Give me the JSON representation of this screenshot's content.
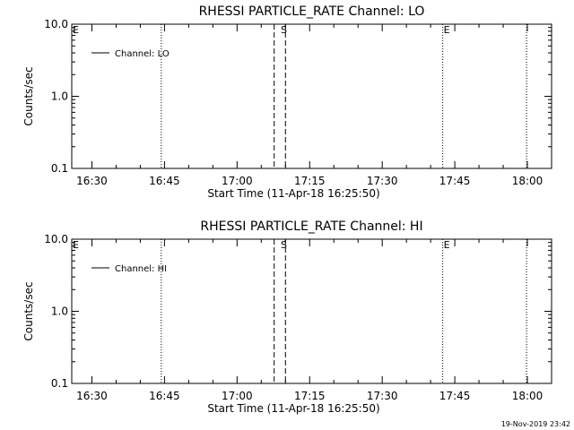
{
  "footer": {
    "timestamp": "19-Nov-2019 23:42"
  },
  "chart_data": [
    {
      "type": "line",
      "title": "RHESSI PARTICLE_RATE Channel: LO",
      "xlabel": "Start Time (11-Apr-18 16:25:50)",
      "ylabel": "Counts/sec",
      "yscale": "log",
      "ylim": [
        0.1,
        10.0
      ],
      "xlim": [
        "16:25:50",
        "18:05:00"
      ],
      "x_ticks": [
        "16:30",
        "16:45",
        "17:00",
        "17:15",
        "17:30",
        "17:45",
        "18:00"
      ],
      "y_ticks": [
        "0.1",
        "1.0",
        "10.0"
      ],
      "grid": false,
      "legend": "top-left",
      "series": [
        {
          "name": "Channel: LO",
          "x": [],
          "values": []
        }
      ],
      "markers": [
        {
          "label": "E",
          "time": "16:25:50",
          "style": "dotted"
        },
        {
          "label": "",
          "time": "16:44:20",
          "style": "dotted"
        },
        {
          "label": "",
          "time": "17:07:40",
          "style": "dashed"
        },
        {
          "label": "S",
          "time": "17:08:50",
          "style": "none"
        },
        {
          "label": "",
          "time": "17:10:00",
          "style": "dashed"
        },
        {
          "label": "E",
          "time": "17:42:30",
          "style": "dotted"
        },
        {
          "label": "",
          "time": "17:59:50",
          "style": "dotted"
        }
      ]
    },
    {
      "type": "line",
      "title": "RHESSI PARTICLE_RATE Channel: HI",
      "xlabel": "Start Time (11-Apr-18 16:25:50)",
      "ylabel": "Counts/sec",
      "yscale": "log",
      "ylim": [
        0.1,
        10.0
      ],
      "xlim": [
        "16:25:50",
        "18:05:00"
      ],
      "x_ticks": [
        "16:30",
        "16:45",
        "17:00",
        "17:15",
        "17:30",
        "17:45",
        "18:00"
      ],
      "y_ticks": [
        "0.1",
        "1.0",
        "10.0"
      ],
      "grid": false,
      "legend": "top-left",
      "series": [
        {
          "name": "Channel: HI",
          "x": [],
          "values": []
        }
      ],
      "markers": [
        {
          "label": "E",
          "time": "16:25:50",
          "style": "dotted"
        },
        {
          "label": "",
          "time": "16:44:20",
          "style": "dotted"
        },
        {
          "label": "",
          "time": "17:07:40",
          "style": "dashed"
        },
        {
          "label": "S",
          "time": "17:08:50",
          "style": "none"
        },
        {
          "label": "",
          "time": "17:10:00",
          "style": "dashed"
        },
        {
          "label": "E",
          "time": "17:42:30",
          "style": "dotted"
        },
        {
          "label": "",
          "time": "17:59:50",
          "style": "dotted"
        }
      ]
    }
  ]
}
